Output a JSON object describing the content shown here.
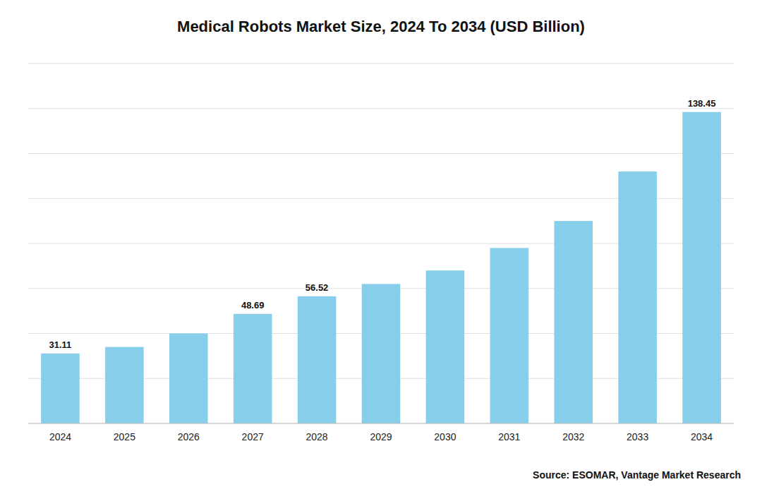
{
  "chart_data": {
    "type": "bar",
    "title": "Medical Robots Market Size, 2024 To 2034 (USD Billion)",
    "categories": [
      "2024",
      "2025",
      "2026",
      "2027",
      "2028",
      "2029",
      "2030",
      "2031",
      "2032",
      "2033",
      "2034"
    ],
    "values": [
      31.11,
      34.0,
      40.0,
      48.69,
      56.52,
      62.0,
      68.0,
      78.0,
      90.0,
      112.0,
      138.45
    ],
    "value_labels": [
      "31.11",
      null,
      null,
      "48.69",
      "56.52",
      null,
      null,
      null,
      null,
      null,
      "138.45"
    ],
    "data_labels": true,
    "color": "#87CEEB",
    "ylim": [
      0,
      160
    ],
    "yticks": [
      0,
      20,
      40,
      60,
      80,
      100,
      120,
      140,
      160
    ],
    "grid": true,
    "tick_labels": "x",
    "annotations": [
      "Source: ESOMAR, Vantage Market Research"
    ]
  }
}
